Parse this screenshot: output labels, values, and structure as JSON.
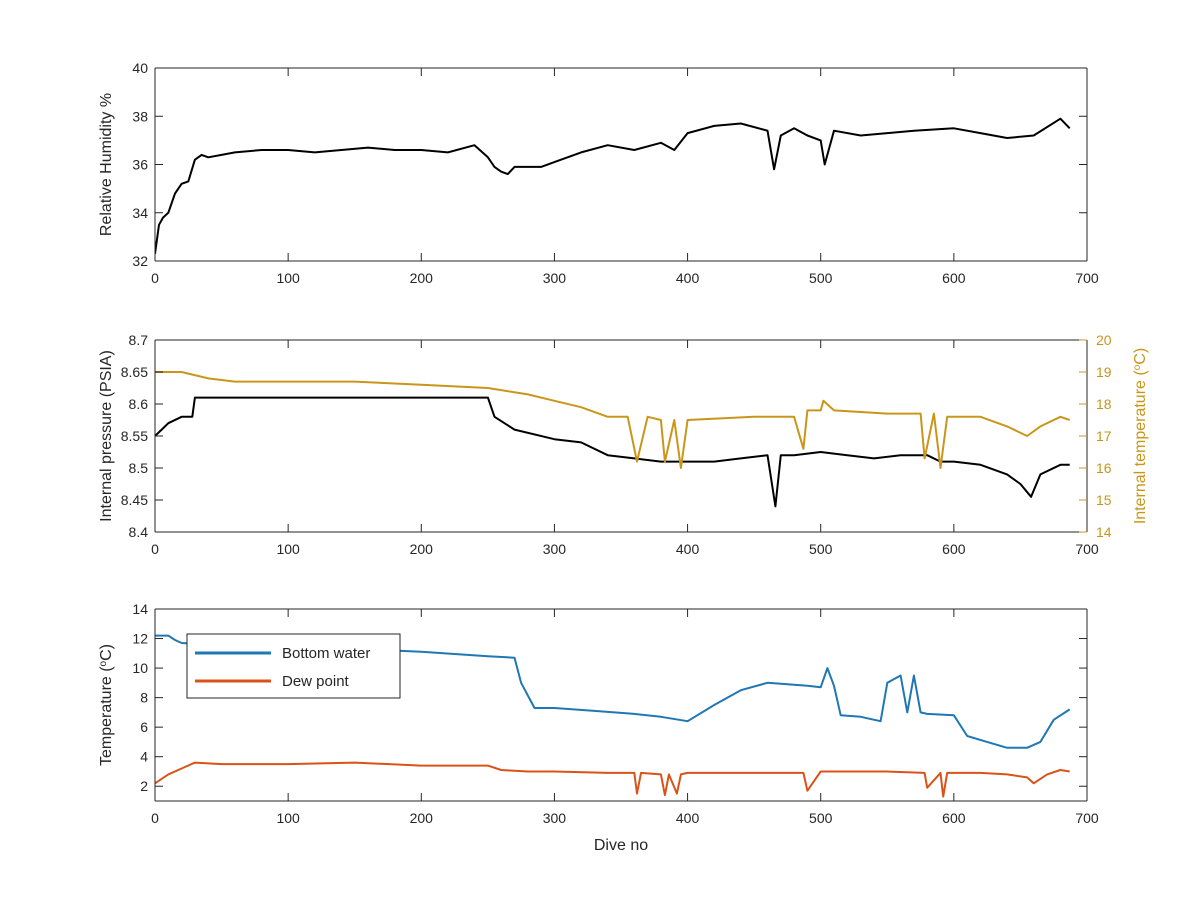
{
  "colors": {
    "black": "#000000",
    "gold": "#c9961a",
    "blue": "#1f77b4",
    "orange": "#d95319",
    "axis": "#262626"
  },
  "chart_data": [
    {
      "type": "line",
      "ylabel": "Relative Humidity %",
      "xlim": [
        0,
        700
      ],
      "ylim": [
        32,
        40
      ],
      "xticks": [
        0,
        100,
        200,
        300,
        400,
        500,
        600,
        700
      ],
      "yticks": [
        32,
        34,
        36,
        38,
        40
      ],
      "series": [
        {
          "color": "#000000",
          "x": [
            0,
            3,
            6,
            10,
            15,
            20,
            25,
            30,
            35,
            40,
            50,
            60,
            80,
            100,
            120,
            140,
            160,
            180,
            200,
            220,
            240,
            250,
            255,
            260,
            265,
            270,
            280,
            290,
            300,
            320,
            340,
            360,
            380,
            390,
            400,
            420,
            440,
            460,
            465,
            470,
            480,
            490,
            500,
            503,
            510,
            530,
            550,
            570,
            600,
            620,
            640,
            660,
            680,
            687
          ],
          "y": [
            32.3,
            33.5,
            33.8,
            34.0,
            34.8,
            35.2,
            35.3,
            36.2,
            36.4,
            36.3,
            36.4,
            36.5,
            36.6,
            36.6,
            36.5,
            36.6,
            36.7,
            36.6,
            36.6,
            36.5,
            36.8,
            36.3,
            35.9,
            35.7,
            35.6,
            35.9,
            35.9,
            35.9,
            36.1,
            36.5,
            36.8,
            36.6,
            36.9,
            36.6,
            37.3,
            37.6,
            37.7,
            37.4,
            35.8,
            37.2,
            37.5,
            37.2,
            37.0,
            36.0,
            37.4,
            37.2,
            37.3,
            37.4,
            37.5,
            37.3,
            37.1,
            37.2,
            37.9,
            37.5
          ]
        }
      ]
    },
    {
      "type": "line",
      "ylabel": "Internal pressure (PSIA)",
      "y2label": "Internal temperature (°C)",
      "xlim": [
        0,
        700
      ],
      "ylim": [
        8.4,
        8.7
      ],
      "y2lim": [
        14,
        20
      ],
      "xticks": [
        0,
        100,
        200,
        300,
        400,
        500,
        600,
        700
      ],
      "yticks": [
        8.4,
        8.45,
        8.5,
        8.55,
        8.6,
        8.65,
        8.7
      ],
      "y2ticks": [
        14,
        15,
        16,
        17,
        18,
        19,
        20
      ],
      "series": [
        {
          "axis": "left",
          "color": "#000000",
          "x": [
            0,
            5,
            10,
            20,
            28,
            30,
            50,
            100,
            150,
            200,
            250,
            255,
            270,
            300,
            320,
            340,
            360,
            380,
            400,
            420,
            440,
            460,
            466,
            470,
            480,
            500,
            520,
            540,
            560,
            580,
            590,
            600,
            620,
            640,
            650,
            658,
            665,
            680,
            687
          ],
          "y": [
            8.55,
            8.56,
            8.57,
            8.58,
            8.58,
            8.61,
            8.61,
            8.61,
            8.61,
            8.61,
            8.61,
            8.58,
            8.56,
            8.545,
            8.54,
            8.52,
            8.515,
            8.51,
            8.51,
            8.51,
            8.515,
            8.52,
            8.44,
            8.52,
            8.52,
            8.525,
            8.52,
            8.515,
            8.52,
            8.52,
            8.51,
            8.51,
            8.505,
            8.49,
            8.475,
            8.455,
            8.49,
            8.505,
            8.505
          ]
        },
        {
          "axis": "right",
          "color": "#c9961a",
          "x": [
            0,
            20,
            40,
            60,
            100,
            150,
            200,
            250,
            280,
            300,
            320,
            340,
            355,
            362,
            370,
            380,
            383,
            390,
            395,
            400,
            450,
            480,
            487,
            490,
            500,
            502,
            510,
            550,
            575,
            578,
            585,
            590,
            595,
            620,
            640,
            655,
            665,
            680,
            687
          ],
          "y": [
            19.0,
            19.0,
            18.8,
            18.7,
            18.7,
            18.7,
            18.6,
            18.5,
            18.3,
            18.1,
            17.9,
            17.6,
            17.6,
            16.2,
            17.6,
            17.5,
            16.2,
            17.5,
            16.0,
            17.5,
            17.6,
            17.6,
            16.6,
            17.8,
            17.8,
            18.1,
            17.8,
            17.7,
            17.7,
            16.3,
            17.7,
            16.0,
            17.6,
            17.6,
            17.3,
            17.0,
            17.3,
            17.6,
            17.5
          ]
        }
      ]
    },
    {
      "type": "line",
      "xlabel": "Dive no",
      "ylabel": "Temperature (°C)",
      "xlim": [
        0,
        700
      ],
      "ylim": [
        1,
        14
      ],
      "xticks": [
        0,
        100,
        200,
        300,
        400,
        500,
        600,
        700
      ],
      "yticks": [
        2,
        4,
        6,
        8,
        10,
        12,
        14
      ],
      "legend": "top-left",
      "series": [
        {
          "name": "Bottom water",
          "color": "#1f77b4",
          "x": [
            0,
            10,
            15,
            20,
            40,
            60,
            100,
            150,
            200,
            250,
            270,
            275,
            285,
            300,
            330,
            360,
            380,
            400,
            420,
            440,
            460,
            490,
            500,
            505,
            510,
            515,
            530,
            545,
            550,
            560,
            565,
            570,
            575,
            580,
            600,
            610,
            625,
            640,
            655,
            665,
            675,
            687
          ],
          "y": [
            12.2,
            12.2,
            11.9,
            11.7,
            11.6,
            11.5,
            11.4,
            11.3,
            11.1,
            10.8,
            10.7,
            9.0,
            7.3,
            7.3,
            7.1,
            6.9,
            6.7,
            6.4,
            7.5,
            8.5,
            9.0,
            8.8,
            8.7,
            10.0,
            8.8,
            6.8,
            6.7,
            6.4,
            9.0,
            9.5,
            7.0,
            9.5,
            7.0,
            6.9,
            6.8,
            5.4,
            5.0,
            4.6,
            4.6,
            5.0,
            6.5,
            7.2
          ]
        },
        {
          "name": "Dew point",
          "color": "#d95319",
          "x": [
            0,
            10,
            20,
            30,
            50,
            100,
            150,
            200,
            250,
            260,
            280,
            300,
            340,
            360,
            362,
            365,
            380,
            383,
            386,
            392,
            395,
            400,
            450,
            487,
            490,
            500,
            550,
            578,
            580,
            590,
            592,
            595,
            620,
            640,
            655,
            660,
            670,
            680,
            687
          ],
          "y": [
            2.2,
            2.8,
            3.2,
            3.6,
            3.5,
            3.5,
            3.6,
            3.4,
            3.4,
            3.1,
            3.0,
            3.0,
            2.9,
            2.9,
            1.5,
            2.9,
            2.8,
            1.4,
            2.8,
            1.5,
            2.8,
            2.9,
            2.9,
            2.9,
            1.7,
            3.0,
            3.0,
            2.9,
            1.9,
            2.9,
            1.3,
            2.9,
            2.9,
            2.8,
            2.6,
            2.2,
            2.8,
            3.1,
            3.0
          ]
        }
      ]
    }
  ]
}
